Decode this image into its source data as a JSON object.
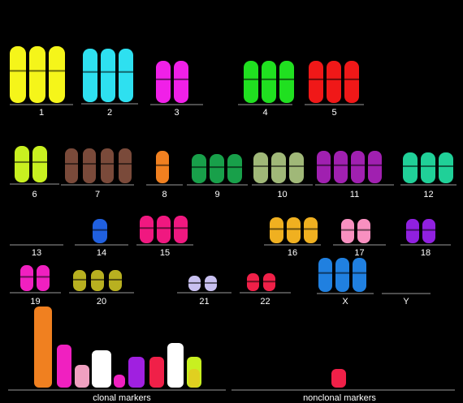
{
  "karyotype": {
    "groups": [
      {
        "label": "1",
        "color": "#f5f51a",
        "count": 3
      },
      {
        "label": "2",
        "color": "#2ee0f0",
        "count": 3
      },
      {
        "label": "3",
        "color": "#f020e8",
        "count": 2
      },
      {
        "label": "4",
        "color": "#20e020",
        "count": 3
      },
      {
        "label": "5",
        "color": "#f01818",
        "count": 3
      },
      {
        "label": "6",
        "color": "#c8f020",
        "count": 2
      },
      {
        "label": "7",
        "color": "#7a4a3a",
        "count": 4
      },
      {
        "label": "8",
        "color": "#f08020",
        "count": 1
      },
      {
        "label": "9",
        "color": "#18a04a",
        "count": 3
      },
      {
        "label": "10",
        "color": "#a0b878",
        "count": 3
      },
      {
        "label": "11",
        "color": "#a020b0",
        "count": 4
      },
      {
        "label": "12",
        "color": "#20d098",
        "count": 3
      },
      {
        "label": "13",
        "color": "#000000",
        "count": 0
      },
      {
        "label": "14",
        "color": "#2060e0",
        "count": 1
      },
      {
        "label": "15",
        "color": "#f01880",
        "count": 3
      },
      {
        "label": "16",
        "color": "#f0b020",
        "count": 3
      },
      {
        "label": "17",
        "color": "#f890c0",
        "count": 2
      },
      {
        "label": "18",
        "color": "#9020e0",
        "count": 2
      },
      {
        "label": "19",
        "color": "#f020c0",
        "count": 2
      },
      {
        "label": "20",
        "color": "#b8b020",
        "count": 3
      },
      {
        "label": "21",
        "color": "#c8c0f0",
        "count": 2
      },
      {
        "label": "22",
        "color": "#f02048",
        "count": 2
      },
      {
        "label": "X",
        "color": "#2080e0",
        "count": 3
      },
      {
        "label": "Y",
        "color": "#000000",
        "count": 0
      }
    ],
    "clonal_label": "clonal markers",
    "nonclonal_label": "nonclonal markers",
    "clonal_colors": [
      "#f08020",
      "#f020c0",
      "#f0a0c0",
      "#ffffff",
      "#f020c0",
      "#a020e0",
      "#f02048",
      "#ffffff",
      "#c8f020",
      "#e0d020"
    ],
    "nonclonal_colors": [
      "#f02048"
    ]
  }
}
